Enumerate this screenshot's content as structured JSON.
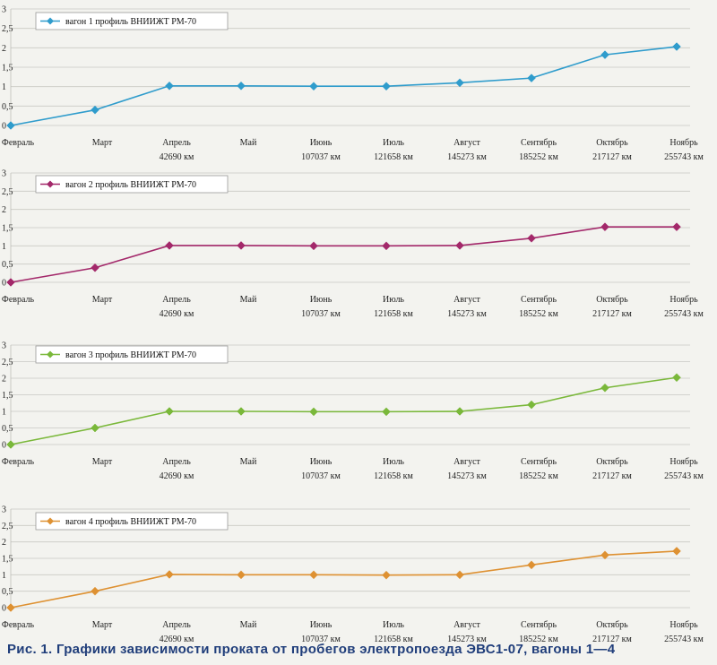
{
  "caption": "Рис. 1. Графики зависимости проката от пробегов электропоезда ЭВС1-07, вагоны 1—4",
  "chart_data": [
    {
      "type": "line",
      "legend": "вагон 1  профиль ВНИИЖТ РМ-70",
      "color": "#2f9ccc",
      "categories": [
        "Февраль",
        "Март",
        "Апрель",
        "Май",
        "Июнь",
        "Июль",
        "Август",
        "Сентябрь",
        "Октябрь",
        "Ноябрь"
      ],
      "mileage": [
        "",
        "",
        "42690 км",
        "",
        "107037 км",
        "121658 км",
        "145273 км",
        "185252 км",
        "217127 км",
        "255743 км"
      ],
      "series": [
        {
          "values": [
            0,
            0.4,
            1.02,
            1.02,
            1.01,
            1.01,
            1.1,
            1.22,
            1.82,
            2.03
          ]
        }
      ],
      "yticks": [
        "0",
        "0,5",
        "1",
        "1,5",
        "2",
        "2,5",
        "3"
      ],
      "ylim": [
        0,
        3
      ],
      "grid": true,
      "legend_position": "top-left"
    },
    {
      "type": "line",
      "legend": "вагон 2   профиль ВНИИЖТ РМ-70",
      "color": "#a3286a",
      "categories": [
        "Февраль",
        "Март",
        "Апрель",
        "Май",
        "Июнь",
        "Июль",
        "Август",
        "Сентябрь",
        "Октябрь",
        "Ноябрь"
      ],
      "mileage": [
        "",
        "",
        "42690 км",
        "",
        "107037 км",
        "121658 км",
        "145273 км",
        "185252 км",
        "217127 км",
        "255743 км"
      ],
      "series": [
        {
          "values": [
            0,
            0.4,
            1.01,
            1.01,
            1.0,
            1.0,
            1.01,
            1.21,
            1.52,
            1.52
          ]
        }
      ],
      "yticks": [
        "0",
        "0,5",
        "1",
        "1,5",
        "2",
        "2,5",
        "3"
      ],
      "ylim": [
        0,
        3
      ],
      "grid": true,
      "legend_position": "top-left"
    },
    {
      "type": "line",
      "legend": "вагон 3  профиль ВНИИЖТ РМ-70",
      "color": "#7ab83a",
      "categories": [
        "Февраль",
        "Март",
        "Апрель",
        "Май",
        "Июнь",
        "Июль",
        "Август",
        "Сентябрь",
        "Октябрь",
        "Ноябрь"
      ],
      "mileage": [
        "",
        "",
        "42690 км",
        "",
        "107037 км",
        "121658 км",
        "145273 км",
        "185252 км",
        "217127 км",
        "255743 км"
      ],
      "series": [
        {
          "values": [
            0,
            0.5,
            1.0,
            1.0,
            0.99,
            0.99,
            1.0,
            1.2,
            1.71,
            2.02
          ]
        }
      ],
      "yticks": [
        "0",
        "0,5",
        "1",
        "1,5",
        "2",
        "2,5",
        "3"
      ],
      "ylim": [
        0,
        3
      ],
      "grid": true,
      "legend_position": "top-left"
    },
    {
      "type": "line",
      "legend": "вагон 4  профиль ВНИИЖТ РМ-70",
      "color": "#de9132",
      "categories": [
        "Февраль",
        "Март",
        "Апрель",
        "Май",
        "Июнь",
        "Июль",
        "Август",
        "Сентябрь",
        "Октябрь",
        "Ноябрь"
      ],
      "mileage": [
        "",
        "",
        "42690 км",
        "",
        "107037 км",
        "121658 км",
        "145273 км",
        "185252 км",
        "217127 км",
        "255743 км"
      ],
      "series": [
        {
          "values": [
            0,
            0.5,
            1.01,
            1.0,
            1.0,
            0.99,
            1.0,
            1.3,
            1.6,
            1.72
          ]
        }
      ],
      "yticks": [
        "0",
        "0,5",
        "1",
        "1,5",
        "2",
        "2,5",
        "3"
      ],
      "ylim": [
        0,
        3
      ],
      "grid": true,
      "legend_position": "top-left"
    }
  ]
}
